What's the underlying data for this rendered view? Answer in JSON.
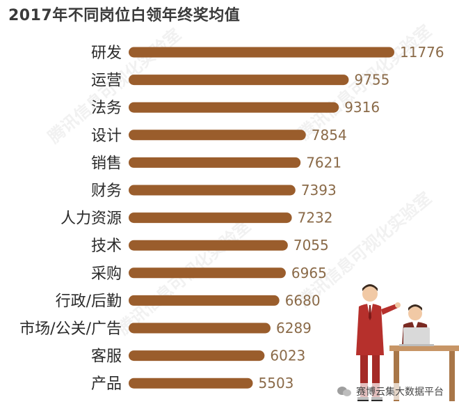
{
  "title": "2017年不同岗位白领年终奖均值",
  "watermark_text": "腾讯信息可视化实验室",
  "footer": {
    "text": "赛博云集大数据平台",
    "icon": "wechat-icon"
  },
  "colors": {
    "bar": "#9a5d2c",
    "value_text": "#8a6a48",
    "label_text": "#2b2b2b"
  },
  "chart_data": {
    "type": "bar",
    "orientation": "horizontal",
    "title": "2017年不同岗位白领年终奖均值",
    "categories": [
      "研发",
      "运营",
      "法务",
      "设计",
      "销售",
      "财务",
      "人力资源",
      "技术",
      "采购",
      "行政/后勤",
      "市场/公关/广告",
      "客服",
      "产品"
    ],
    "values": [
      11776,
      9755,
      9316,
      7854,
      7621,
      7393,
      7232,
      7055,
      6965,
      6680,
      6289,
      6023,
      5503
    ],
    "xlim": [
      0,
      11776
    ],
    "grid": false,
    "legend": "none"
  }
}
